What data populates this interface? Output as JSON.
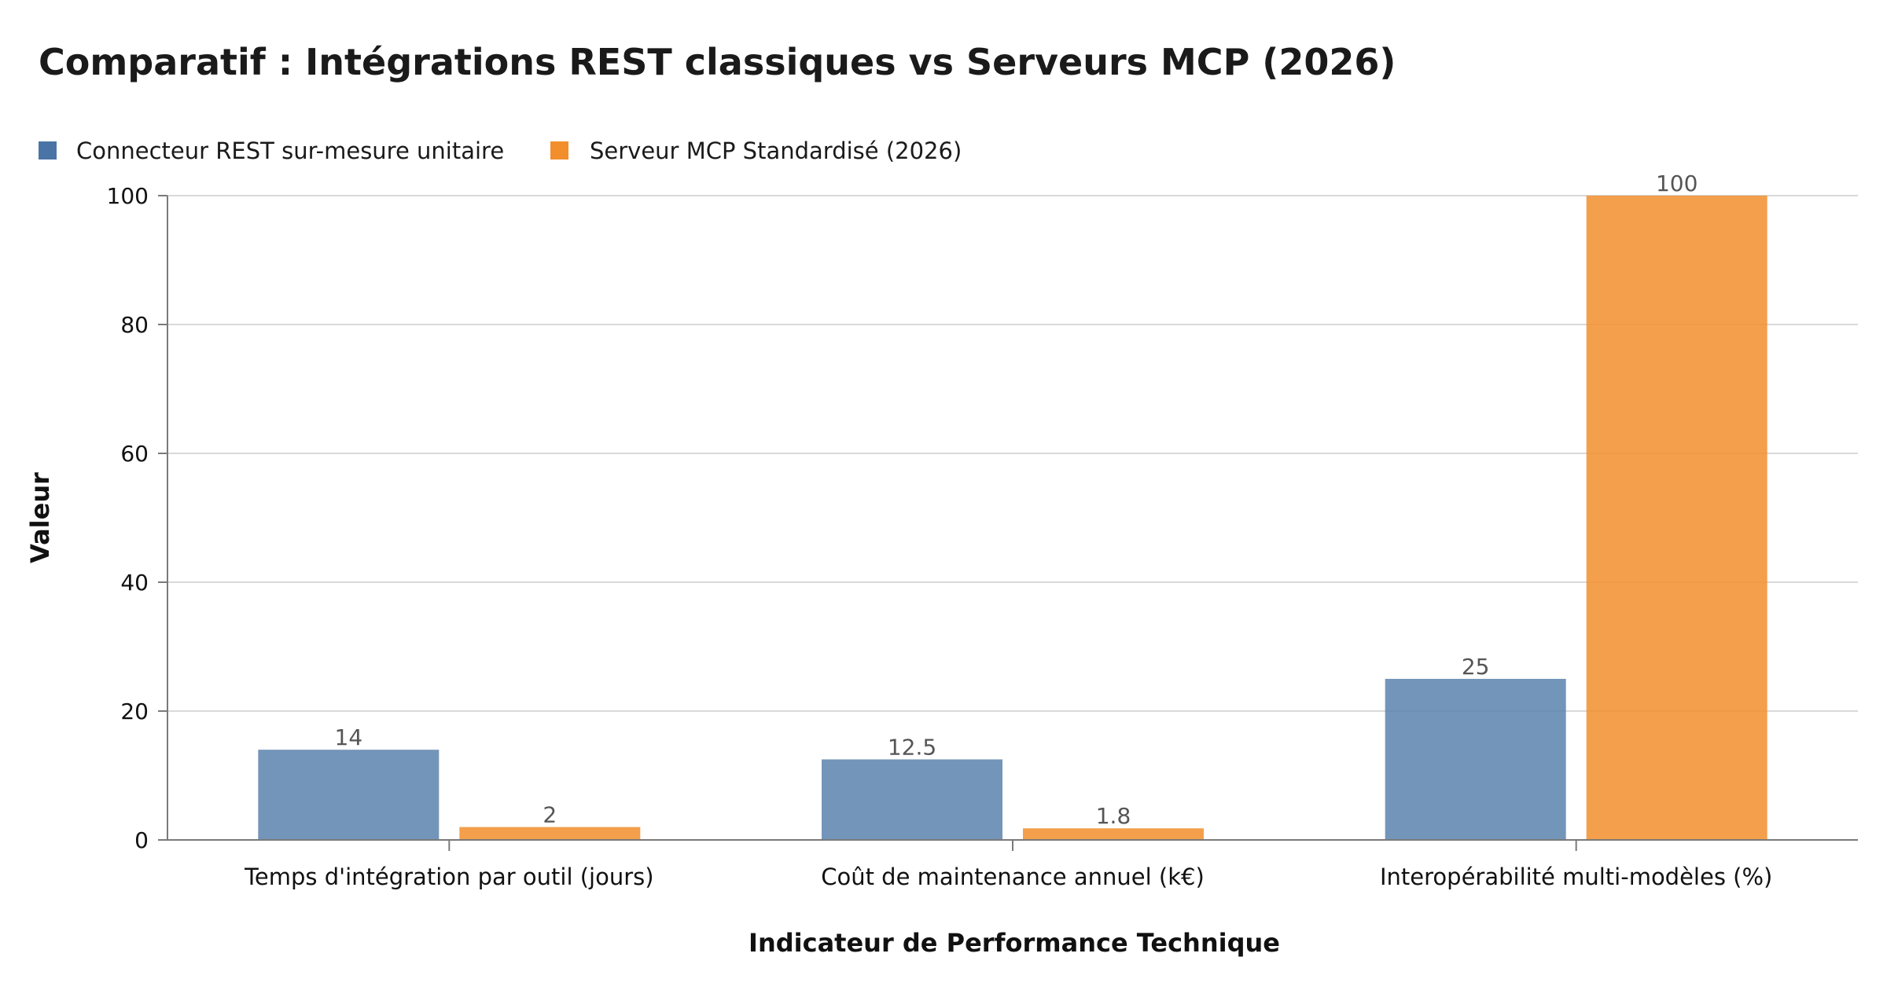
{
  "chart_data": {
    "type": "bar",
    "title": "Comparatif : Intégrations REST classiques vs Serveurs MCP (2026)",
    "xlabel": "Indicateur de Performance Technique",
    "ylabel": "Valeur",
    "categories": [
      "Temps d'intégration par outil (jours)",
      "Coût de maintenance annuel (k€)",
      "Interopérabilité multi-modèles (%)"
    ],
    "series": [
      {
        "name": "Connecteur REST sur-mesure unitaire",
        "color": "#5b82ad",
        "values": [
          14,
          12.5,
          25
        ],
        "labels": [
          "14",
          "12.5",
          "25"
        ]
      },
      {
        "name": "Serveur MCP Standardisé (2026)",
        "color": "#f28e2b",
        "values": [
          2,
          1.8,
          100
        ],
        "labels": [
          "2",
          "1.8",
          "100"
        ]
      }
    ],
    "ylim": [
      0,
      100
    ],
    "yticks": [
      0,
      20,
      40,
      60,
      80,
      100
    ],
    "ytick_labels": [
      "0",
      "20",
      "40",
      "60",
      "80",
      "100"
    ],
    "grid": true,
    "legend": "top-left"
  }
}
